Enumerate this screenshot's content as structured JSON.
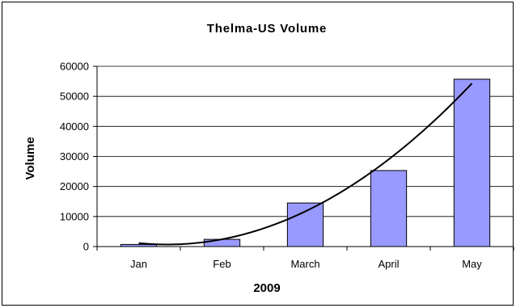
{
  "chart_data": {
    "type": "bar",
    "title": "Thelma-US Volume",
    "xlabel": "2009",
    "ylabel": "Volume",
    "categories": [
      "Jan",
      "Feb",
      "March",
      "April",
      "May"
    ],
    "series": [
      {
        "values": [
          700,
          2400,
          14500,
          25300,
          55700
        ],
        "color": "#9999ff"
      }
    ],
    "trendline": {
      "type": "polynomial",
      "color": "#000000"
    },
    "yticks": [
      0,
      10000,
      20000,
      30000,
      40000,
      50000,
      60000
    ],
    "ylim": [
      0,
      60000
    ],
    "grid": true,
    "legend": "none"
  }
}
